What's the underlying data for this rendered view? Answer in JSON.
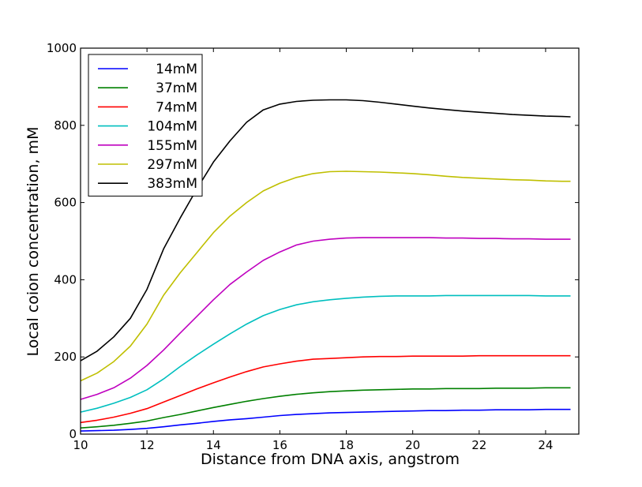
{
  "chart_data": {
    "type": "line",
    "title": "",
    "xlabel": "Distance from DNA axis, angstrom",
    "ylabel": "Local coion concentration, mM",
    "xlim": [
      10,
      25
    ],
    "ylim": [
      0,
      1000
    ],
    "xticks": [
      10,
      12,
      14,
      16,
      18,
      20,
      22,
      24
    ],
    "yticks": [
      0,
      200,
      400,
      600,
      800,
      1000
    ],
    "grid": false,
    "legend_position": "top-left",
    "x": [
      10,
      10.5,
      11,
      11.5,
      12,
      12.5,
      13,
      13.5,
      14,
      14.5,
      15,
      15.5,
      16,
      16.5,
      17,
      17.5,
      18,
      18.5,
      19,
      19.5,
      20,
      20.5,
      21,
      21.5,
      22,
      22.5,
      23,
      23.5,
      24,
      24.5,
      24.75
    ],
    "series": [
      {
        "name": "14mM",
        "color": "#0000ff",
        "values": [
          8,
          9,
          10,
          12,
          15,
          19,
          24,
          28,
          33,
          37,
          40,
          44,
          48,
          51,
          53,
          55,
          56,
          57,
          58,
          59,
          60,
          61,
          61,
          62,
          62,
          63,
          63,
          63,
          64,
          64,
          64
        ]
      },
      {
        "name": "37mM",
        "color": "#008000",
        "values": [
          16,
          19,
          23,
          28,
          34,
          43,
          51,
          60,
          69,
          77,
          85,
          92,
          98,
          103,
          107,
          110,
          112,
          114,
          115,
          116,
          117,
          117,
          118,
          118,
          118,
          119,
          119,
          119,
          120,
          120,
          120
        ]
      },
      {
        "name": "74mM",
        "color": "#ff0000",
        "values": [
          30,
          36,
          44,
          54,
          66,
          83,
          100,
          117,
          133,
          148,
          162,
          174,
          182,
          189,
          194,
          196,
          198,
          200,
          201,
          201,
          202,
          202,
          202,
          202,
          203,
          203,
          203,
          203,
          203,
          203,
          203
        ]
      },
      {
        "name": "104mM",
        "color": "#00bfbf",
        "values": [
          57,
          67,
          80,
          95,
          115,
          143,
          175,
          205,
          233,
          260,
          285,
          307,
          323,
          335,
          343,
          348,
          352,
          355,
          357,
          358,
          358,
          358,
          359,
          359,
          359,
          359,
          359,
          359,
          358,
          358,
          358
        ]
      },
      {
        "name": "155mM",
        "color": "#bf00bf",
        "values": [
          90,
          103,
          120,
          145,
          178,
          218,
          262,
          305,
          348,
          388,
          420,
          450,
          472,
          490,
          500,
          505,
          508,
          509,
          509,
          509,
          509,
          509,
          508,
          508,
          507,
          507,
          506,
          506,
          505,
          505,
          505
        ]
      },
      {
        "name": "297mM",
        "color": "#bfbf00",
        "values": [
          138,
          158,
          188,
          228,
          285,
          360,
          418,
          470,
          522,
          565,
          600,
          630,
          650,
          665,
          675,
          680,
          681,
          680,
          679,
          677,
          675,
          672,
          668,
          665,
          663,
          661,
          659,
          658,
          656,
          655,
          655
        ]
      },
      {
        "name": "383mM",
        "color": "#000000",
        "values": [
          190,
          215,
          252,
          300,
          375,
          480,
          560,
          635,
          705,
          760,
          808,
          840,
          855,
          862,
          865,
          866,
          866,
          864,
          860,
          855,
          850,
          845,
          841,
          837,
          834,
          831,
          828,
          826,
          824,
          823,
          822
        ]
      }
    ]
  }
}
